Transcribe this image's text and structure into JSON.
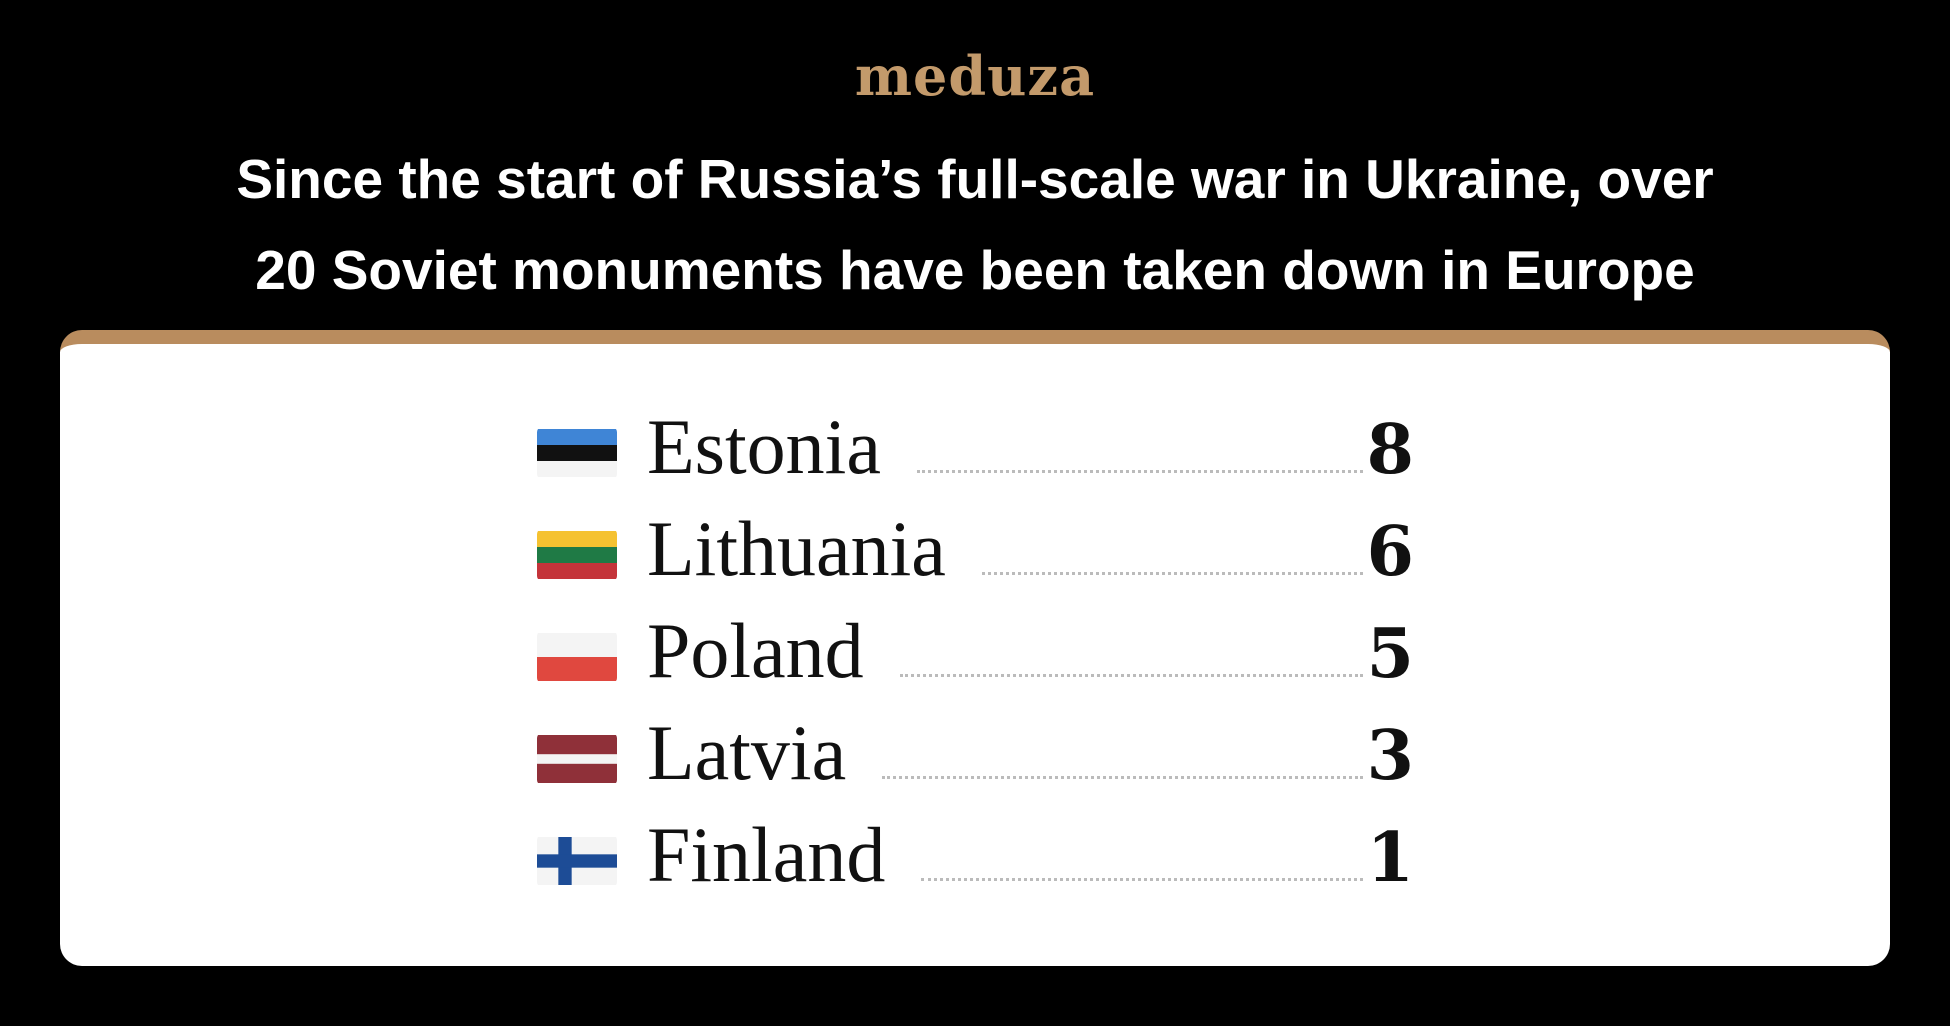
{
  "logo": "meduza",
  "title_lines": [
    "Since the start of Russia’s full-scale war in Ukraine, over",
    "20 Soviet monuments have been taken down in Europe"
  ],
  "rows": [
    {
      "country": "Estonia",
      "count": 8
    },
    {
      "country": "Lithuania",
      "count": 6
    },
    {
      "country": "Poland",
      "count": 5
    },
    {
      "country": "Latvia",
      "count": 3
    },
    {
      "country": "Finland",
      "count": 1
    }
  ]
}
